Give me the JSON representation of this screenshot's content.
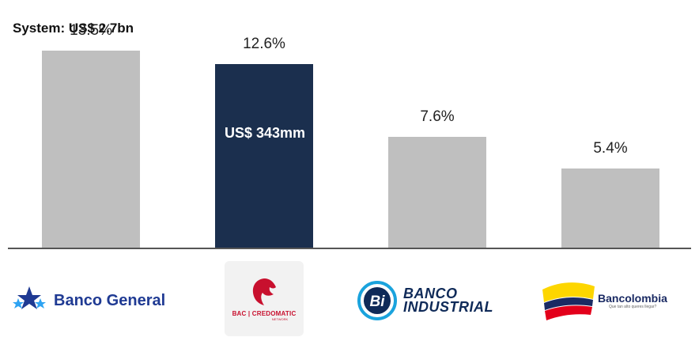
{
  "chart_data": {
    "type": "bar",
    "subtitle": "System: US$ 2.7bn",
    "categories": [
      "Banco General",
      "BAC | CREDOMATIC",
      "BANCO INDUSTRIAL",
      "Bancolombia"
    ],
    "values": [
      13.5,
      12.6,
      7.6,
      5.4
    ],
    "value_labels": [
      "13.5%",
      "12.6%",
      "7.6%",
      "5.4%"
    ],
    "highlight_index": 1,
    "highlight_annotation": "US$ 343mm",
    "ylim": [
      0,
      16
    ],
    "grid": false,
    "legend": "none",
    "colors": {
      "default_bar": "#bfbfbf",
      "highlight_bar": "#1b2f4e",
      "axis": "#555555"
    }
  },
  "logos": {
    "banco_general": {
      "text": "Banco General",
      "icon": "star-cluster-icon",
      "color": "#1f3a93",
      "star_color": "#2ea3f2"
    },
    "bac": {
      "text": "BAC | CREDOMATIC",
      "subtext": "NETWORK",
      "icon": "lion-head-icon",
      "color": "#c8102e"
    },
    "banco_industrial": {
      "line1": "BANCO",
      "line2": "INDUSTRIAL",
      "icon_letters": "Bi",
      "icon": "bi-circle-icon",
      "color": "#0f2a58",
      "ring_color": "#1aa3dd"
    },
    "bancolombia": {
      "text": "Bancolombia",
      "tagline": "Que tan alto queres llegar?",
      "icon": "tricolor-swoosh-icon",
      "colors": [
        "#fdd600",
        "#1a2a63",
        "#e3001b"
      ]
    }
  }
}
